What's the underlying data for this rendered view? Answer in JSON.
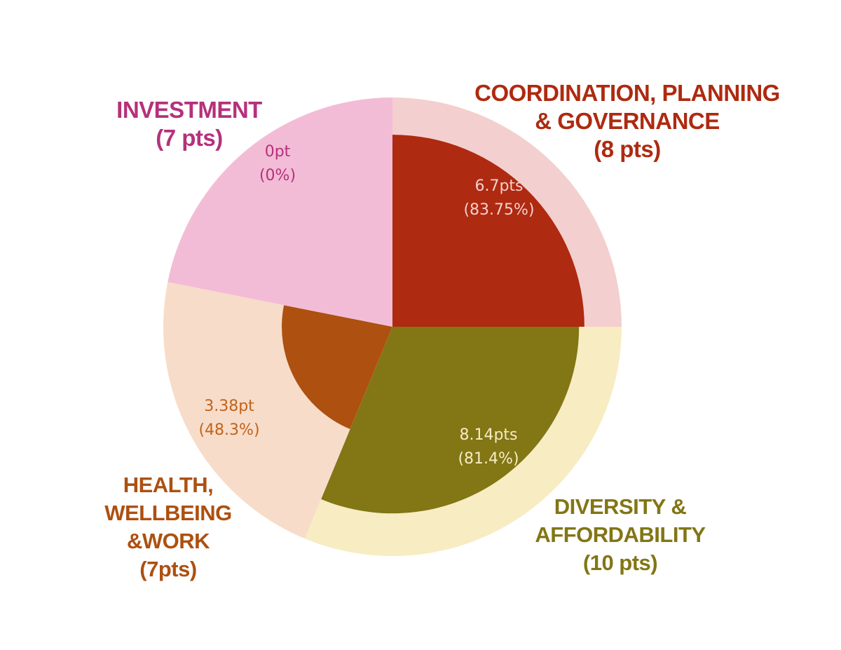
{
  "chart_data": {
    "type": "pie",
    "slices": [
      {
        "key": "coordination",
        "category_lines": [
          "COORDINATION, PLANNING",
          "& GOVERNANCE",
          "(8 pts)"
        ],
        "max_points": 8,
        "score_points": 6.7,
        "score_pct": 83.75,
        "value_text": "6.7pts",
        "pct_text": "(83.75%)",
        "outer_color": "#f3cfcf",
        "inner_color": "#ae2a10",
        "label_color": "#ae2a10",
        "value_text_color": "#f3cfcf"
      },
      {
        "key": "diversity",
        "category_lines": [
          "DIVERSITY &",
          "AFFORDABILITY",
          "(10 pts)"
        ],
        "max_points": 10,
        "score_points": 8.14,
        "score_pct": 81.4,
        "value_text": "8.14pts",
        "pct_text": "(81.4%)",
        "outer_color": "#f7ecc2",
        "inner_color": "#827615",
        "label_color": "#827615",
        "value_text_color": "#f7ecc2"
      },
      {
        "key": "health",
        "category_lines": [
          "HEALTH,",
          "WELLBEING",
          "&WORK",
          "(7pts)"
        ],
        "max_points": 7,
        "score_points": 3.38,
        "score_pct": 48.3,
        "value_text": "3.38pt",
        "pct_text": "(48.3%)",
        "outer_color": "#f7dcca",
        "inner_color": "#ad5010",
        "label_color": "#ad5010",
        "value_text_color": "#c0641a"
      },
      {
        "key": "investment",
        "category_lines": [
          "INVESTMENT",
          "(7 pts)"
        ],
        "max_points": 7,
        "score_points": 0,
        "score_pct": 0,
        "value_text": "0pt",
        "pct_text": "(0%)",
        "outer_color": "#f3bcd6",
        "inner_color": "#f3bcd6",
        "label_color": "#b5317b",
        "value_text_color": "#b5317b"
      }
    ]
  }
}
